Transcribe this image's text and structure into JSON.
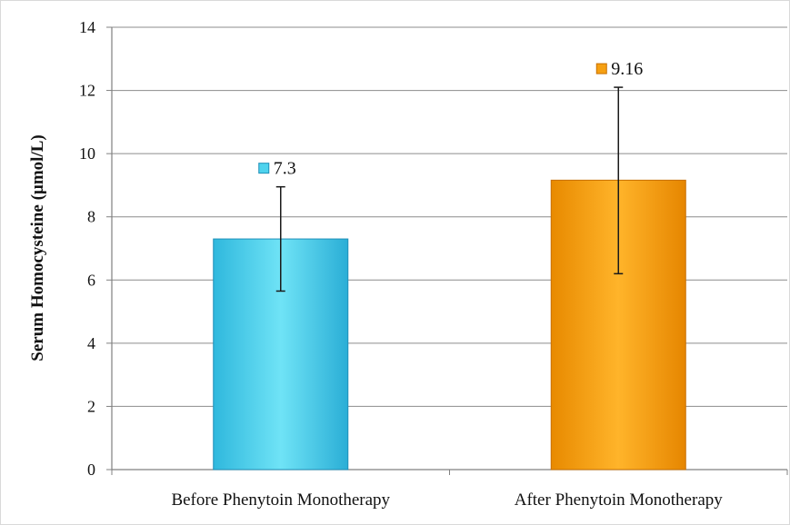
{
  "chart_data": {
    "type": "bar",
    "title": "",
    "xlabel": "",
    "ylabel": "Serum Homocysteine (µmol/L)",
    "ylim": [
      0,
      14
    ],
    "y_ticks": [
      0,
      2,
      4,
      6,
      8,
      10,
      12,
      14
    ],
    "grid": true,
    "categories": [
      "Before Phenytoin Monotherapy",
      "After Phenytoin Monotherapy"
    ],
    "values": [
      7.3,
      9.16
    ],
    "data_labels": [
      "7.3",
      "9.16"
    ],
    "error_bars": [
      {
        "low": 5.65,
        "high": 8.95
      },
      {
        "low": 6.2,
        "high": 12.1
      }
    ],
    "colors": [
      "#4fd3ee",
      "#f6a012"
    ]
  }
}
